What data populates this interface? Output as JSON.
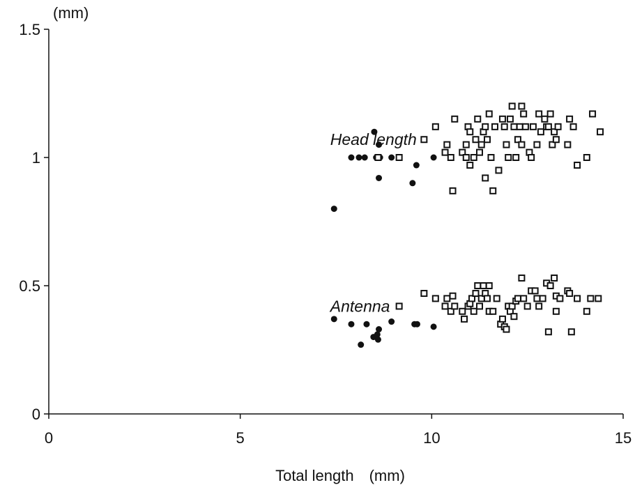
{
  "chart_data": {
    "type": "scatter",
    "title": "",
    "xlabel": "Total length　(mm)",
    "ylabel": "(mm)",
    "xlim": [
      0,
      15
    ],
    "ylim": [
      0,
      1.5
    ],
    "xticks": [
      "0",
      "5",
      "10",
      "15"
    ],
    "yticks": [
      "0",
      "0.5",
      "1",
      "1.5"
    ],
    "grid": false,
    "legend": "none",
    "annotations": [
      {
        "text": "Head length",
        "x": 7.35,
        "y": 1.07
      },
      {
        "text": "Antenna",
        "x": 7.35,
        "y": 0.42
      }
    ],
    "series": [
      {
        "marker": "filled-circle",
        "color": "#111111",
        "points": [
          [
            7.45,
            0.8
          ],
          [
            7.9,
            1.0
          ],
          [
            8.1,
            1.0
          ],
          [
            8.25,
            1.0
          ],
          [
            8.5,
            1.1
          ],
          [
            8.55,
            1.0
          ],
          [
            8.62,
            1.05
          ],
          [
            8.65,
            1.0
          ],
          [
            8.62,
            0.92
          ],
          [
            8.95,
            1.0
          ],
          [
            9.6,
            0.97
          ],
          [
            9.5,
            0.9
          ],
          [
            10.05,
            1.0
          ],
          [
            7.45,
            0.37
          ],
          [
            7.9,
            0.35
          ],
          [
            8.15,
            0.27
          ],
          [
            8.3,
            0.35
          ],
          [
            8.48,
            0.3
          ],
          [
            8.58,
            0.31
          ],
          [
            8.62,
            0.33
          ],
          [
            8.6,
            0.29
          ],
          [
            8.95,
            0.36
          ],
          [
            9.55,
            0.35
          ],
          [
            9.62,
            0.35
          ],
          [
            10.05,
            0.34
          ]
        ]
      },
      {
        "marker": "open-square",
        "color": "#111111",
        "points": [
          [
            8.6,
            1.0
          ],
          [
            9.15,
            1.0
          ],
          [
            9.8,
            1.07
          ],
          [
            10.1,
            1.12
          ],
          [
            10.35,
            1.02
          ],
          [
            10.4,
            1.05
          ],
          [
            10.5,
            1.0
          ],
          [
            10.55,
            0.87
          ],
          [
            10.6,
            1.15
          ],
          [
            10.8,
            1.02
          ],
          [
            10.9,
            1.0
          ],
          [
            10.9,
            1.05
          ],
          [
            10.95,
            1.12
          ],
          [
            11.0,
            1.1
          ],
          [
            11.0,
            0.97
          ],
          [
            11.1,
            1.0
          ],
          [
            11.15,
            1.07
          ],
          [
            11.2,
            1.15
          ],
          [
            11.25,
            1.02
          ],
          [
            11.3,
            1.05
          ],
          [
            11.35,
            1.1
          ],
          [
            11.4,
            1.12
          ],
          [
            11.4,
            0.92
          ],
          [
            11.45,
            1.07
          ],
          [
            11.5,
            1.17
          ],
          [
            11.55,
            1.0
          ],
          [
            11.6,
            0.87
          ],
          [
            11.65,
            1.12
          ],
          [
            11.75,
            0.95
          ],
          [
            11.85,
            1.15
          ],
          [
            11.9,
            1.12
          ],
          [
            11.95,
            1.05
          ],
          [
            12.0,
            1.0
          ],
          [
            12.05,
            1.15
          ],
          [
            12.1,
            1.2
          ],
          [
            12.15,
            1.12
          ],
          [
            12.2,
            1.0
          ],
          [
            12.25,
            1.07
          ],
          [
            12.3,
            1.12
          ],
          [
            12.35,
            1.05
          ],
          [
            12.35,
            1.2
          ],
          [
            12.4,
            1.17
          ],
          [
            12.45,
            1.12
          ],
          [
            12.55,
            1.02
          ],
          [
            12.6,
            1.0
          ],
          [
            12.65,
            1.12
          ],
          [
            12.75,
            1.05
          ],
          [
            12.8,
            1.17
          ],
          [
            12.85,
            1.1
          ],
          [
            12.95,
            1.15
          ],
          [
            13.0,
            1.12
          ],
          [
            13.05,
            1.12
          ],
          [
            13.1,
            1.17
          ],
          [
            13.15,
            1.05
          ],
          [
            13.2,
            1.1
          ],
          [
            13.25,
            1.07
          ],
          [
            13.3,
            1.12
          ],
          [
            13.55,
            1.05
          ],
          [
            13.6,
            1.15
          ],
          [
            13.7,
            1.12
          ],
          [
            13.8,
            0.97
          ],
          [
            14.05,
            1.0
          ],
          [
            14.2,
            1.17
          ],
          [
            14.4,
            1.1
          ],
          [
            9.15,
            0.42
          ],
          [
            9.8,
            0.47
          ],
          [
            10.1,
            0.45
          ],
          [
            10.35,
            0.42
          ],
          [
            10.4,
            0.45
          ],
          [
            10.5,
            0.4
          ],
          [
            10.55,
            0.46
          ],
          [
            10.6,
            0.42
          ],
          [
            10.8,
            0.4
          ],
          [
            10.85,
            0.37
          ],
          [
            10.95,
            0.42
          ],
          [
            11.0,
            0.43
          ],
          [
            11.05,
            0.45
          ],
          [
            11.1,
            0.4
          ],
          [
            11.15,
            0.47
          ],
          [
            11.2,
            0.5
          ],
          [
            11.25,
            0.42
          ],
          [
            11.3,
            0.45
          ],
          [
            11.35,
            0.5
          ],
          [
            11.4,
            0.47
          ],
          [
            11.45,
            0.45
          ],
          [
            11.5,
            0.5
          ],
          [
            11.5,
            0.4
          ],
          [
            11.6,
            0.4
          ],
          [
            11.7,
            0.45
          ],
          [
            11.8,
            0.35
          ],
          [
            11.85,
            0.37
          ],
          [
            11.9,
            0.34
          ],
          [
            11.95,
            0.33
          ],
          [
            12.0,
            0.42
          ],
          [
            12.05,
            0.4
          ],
          [
            12.1,
            0.42
          ],
          [
            12.15,
            0.38
          ],
          [
            12.2,
            0.44
          ],
          [
            12.25,
            0.45
          ],
          [
            12.35,
            0.53
          ],
          [
            12.4,
            0.45
          ],
          [
            12.5,
            0.42
          ],
          [
            12.6,
            0.48
          ],
          [
            12.7,
            0.48
          ],
          [
            12.75,
            0.45
          ],
          [
            12.8,
            0.42
          ],
          [
            12.9,
            0.45
          ],
          [
            13.0,
            0.51
          ],
          [
            13.05,
            0.32
          ],
          [
            13.1,
            0.5
          ],
          [
            13.2,
            0.53
          ],
          [
            13.25,
            0.46
          ],
          [
            13.25,
            0.4
          ],
          [
            13.35,
            0.45
          ],
          [
            13.55,
            0.48
          ],
          [
            13.6,
            0.47
          ],
          [
            13.65,
            0.32
          ],
          [
            13.8,
            0.45
          ],
          [
            14.05,
            0.4
          ],
          [
            14.15,
            0.45
          ],
          [
            14.35,
            0.45
          ]
        ]
      }
    ]
  }
}
